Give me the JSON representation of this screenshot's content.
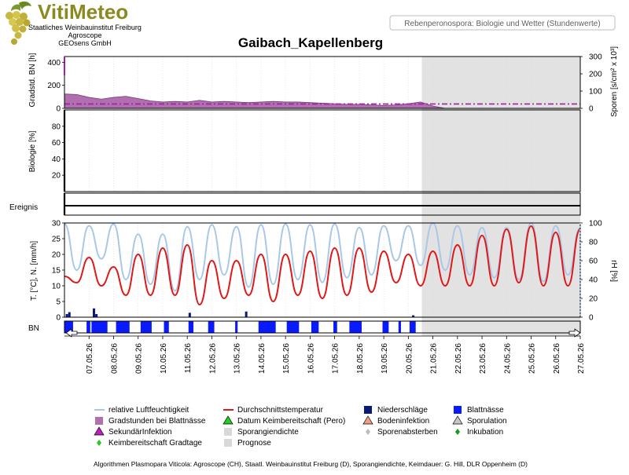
{
  "header": {
    "brand": "VitiMeteo",
    "org_lines": [
      "Staatliches Weinbauinstitut Freiburg",
      "Agroscope",
      "GEOsens GmbH"
    ],
    "report_title": "Rebenperonospora: Biologie und Wetter (Stundenwerte)",
    "station": "Gaibach_Kapellenberg"
  },
  "colors": {
    "brand": "#8a8a20",
    "humidity": "#a9c8e8",
    "temperature": "#e01818",
    "precip": "#0a1a7a",
    "leaf_wet": "#0a1aff",
    "degree_hours": "#b070b0",
    "forecast_bg": "#e2e2e2",
    "axis": "#000000"
  },
  "chart_data": [
    {
      "type": "area",
      "panel": "Gradstd. BN / Sporen",
      "ylabel": "Gradstd. BN [h]",
      "ylim": [
        0,
        450
      ],
      "yticks": [
        "0",
        "200",
        "400"
      ],
      "ylabel_right": "Sporen [s/cm² x 10³]",
      "ylim_right": [
        0,
        300
      ],
      "yticks_right": [
        "0",
        "100",
        "200",
        "300"
      ],
      "series": [
        {
          "name": "Gradstunden bei Blattnässe",
          "x": [
            6.0,
            6.5,
            7.0,
            7.5,
            8.0,
            8.5,
            9.0,
            9.5,
            10.0,
            10.5,
            11.0,
            11.5,
            12.0,
            12.5,
            13.0,
            13.5,
            14.0,
            14.5,
            15.0,
            15.5,
            16.0,
            16.5,
            17.0,
            17.5,
            18.0,
            18.5,
            19.0,
            19.5,
            20.0,
            20.5,
            21.0,
            21.5
          ],
          "values": [
            125,
            120,
            95,
            80,
            95,
            105,
            85,
            65,
            55,
            60,
            55,
            70,
            55,
            60,
            55,
            50,
            55,
            60,
            55,
            55,
            50,
            45,
            40,
            35,
            35,
            30,
            25,
            30,
            40,
            55,
            20,
            0
          ]
        }
      ],
      "dashed_line": 38
    },
    {
      "type": "line",
      "panel": "Biologie",
      "ylabel": "Biologie [%]",
      "ylim": [
        0,
        100
      ],
      "yticks": [
        "20",
        "40",
        "60",
        "80"
      ]
    },
    {
      "type": "line",
      "panel": "Ereignis",
      "ylabel": "Ereignis"
    },
    {
      "type": "line",
      "panel": "Wetter",
      "xlabel": "",
      "ylabel": "T. [°C], N. [mm/h]",
      "ylim": [
        0,
        30
      ],
      "yticks": [
        "0",
        "5",
        "10",
        "15",
        "20",
        "25",
        "30"
      ],
      "ylabel_right": "rH [%]",
      "ylim_right": [
        0,
        100
      ],
      "yticks_right": [
        "0",
        "20",
        "40",
        "60",
        "80",
        "100"
      ],
      "categories": [
        "07.05.26",
        "08.05.26",
        "09.05.26",
        "10.05.26",
        "11.05.26",
        "12.05.26",
        "13.05.26",
        "14.05.26",
        "15.05.26",
        "16.05.26",
        "17.05.26",
        "18.05.26",
        "19.05.26",
        "20.05.26",
        "21.05.26",
        "22.05.26",
        "23.05.26",
        "24.05.26",
        "25.05.26",
        "26.05.26",
        "27.05.26"
      ],
      "series": [
        {
          "name": "Durchschnittstemperatur",
          "daily_min": [
            11,
            10,
            7,
            7,
            7,
            4,
            6,
            7,
            5,
            7,
            6,
            7,
            8,
            11,
            10,
            10,
            10,
            10,
            11,
            10,
            10
          ],
          "daily_max": [
            19,
            16,
            20,
            22,
            23,
            18,
            18,
            20,
            20,
            21,
            22,
            22,
            21,
            20,
            21,
            23,
            26,
            28,
            29,
            27,
            28
          ],
          "x": [
            6.0,
            6.5,
            7.0,
            7.5,
            8.0,
            8.5,
            9.0,
            9.5,
            10.0,
            10.5,
            11.0,
            11.5,
            12.0,
            12.5,
            13.0,
            13.5,
            14.0,
            14.5,
            15.0,
            15.5,
            16.0,
            16.5,
            17.0,
            17.5,
            18.0,
            18.5,
            19.0,
            19.5,
            20.0,
            20.5,
            21.0,
            21.5,
            22.0,
            22.5,
            23.0,
            23.5,
            24.0,
            24.5,
            25.0,
            25.5,
            26.0,
            26.5,
            27.0
          ],
          "values": [
            13,
            11,
            19,
            10,
            16,
            7,
            20,
            7,
            22,
            7,
            23,
            4,
            18,
            6,
            18,
            7,
            20,
            5,
            20,
            7,
            21,
            6,
            22,
            7,
            22,
            8,
            21,
            11,
            20,
            10,
            21,
            10,
            23,
            10,
            26,
            10,
            28,
            11,
            29,
            10,
            27,
            10,
            28
          ]
        },
        {
          "name": "relative Luftfeuchtigkeit",
          "x": [
            6.0,
            6.5,
            7.0,
            7.5,
            8.0,
            8.5,
            9.0,
            9.5,
            10.0,
            10.5,
            11.0,
            11.5,
            12.0,
            12.5,
            13.0,
            13.5,
            14.0,
            14.5,
            15.0,
            15.5,
            16.0,
            16.5,
            17.0,
            17.5,
            18.0,
            18.5,
            19.0,
            19.5,
            20.0,
            20.5,
            21.0,
            21.5,
            22.0,
            22.5,
            23.0,
            23.5,
            24.0,
            24.5,
            25.0,
            25.5,
            26.0,
            26.5,
            27.0
          ],
          "values": [
            99,
            50,
            97,
            62,
            99,
            40,
            88,
            35,
            88,
            28,
            96,
            40,
            98,
            45,
            96,
            32,
            98,
            35,
            99,
            40,
            98,
            37,
            99,
            42,
            95,
            45,
            97,
            60,
            97,
            55,
            100,
            50,
            97,
            45,
            95,
            42,
            95,
            40,
            100,
            38,
            97,
            45,
            95
          ]
        },
        {
          "name": "Niederschläge",
          "x": [
            6.1,
            6.2,
            7.2,
            7.3,
            11.1,
            13.4,
            20.2
          ],
          "values": [
            1.0,
            1.6,
            2.8,
            1.0,
            1.4,
            1.8,
            0.6
          ]
        }
      ]
    },
    {
      "type": "bar",
      "panel": "BN",
      "ylabel": "BN",
      "series": [
        {
          "name": "Blattnässe",
          "intervals": [
            [
              6.0,
              6.35
            ],
            [
              6.9,
              7.05
            ],
            [
              7.1,
              7.75
            ],
            [
              8.1,
              8.65
            ],
            [
              9.1,
              9.55
            ],
            [
              10.05,
              10.25
            ],
            [
              11.05,
              11.25
            ],
            [
              11.85,
              12.1
            ],
            [
              12.95,
              13.05
            ],
            [
              13.9,
              14.6
            ],
            [
              15.05,
              15.55
            ],
            [
              16.05,
              16.35
            ],
            [
              16.95,
              17.1
            ],
            [
              17.6,
              18.1
            ],
            [
              18.95,
              19.2
            ],
            [
              19.6,
              19.7
            ],
            [
              20.05,
              20.3
            ]
          ]
        }
      ]
    }
  ],
  "legend": {
    "items": [
      {
        "label": "relative Luftfeuchtigkeit",
        "symbol": "line",
        "color": "#a9c8e8"
      },
      {
        "label": "Durchschnittstemperatur",
        "symbol": "line",
        "color": "#e01818"
      },
      {
        "label": "Niederschläge",
        "symbol": "square",
        "color": "#0a1a7a"
      },
      {
        "label": "Blattnässe",
        "symbol": "square",
        "color": "#0a1aff"
      },
      {
        "label": "Gradstunden bei Blattnässe",
        "symbol": "square",
        "color": "#b070b0"
      },
      {
        "label": "Datum Keimbereitschaft (Pero)",
        "symbol": "triangle",
        "color": "#22cc22"
      },
      {
        "label": "Bodeninfektion",
        "symbol": "triangle",
        "color": "#f0a080"
      },
      {
        "label": "Sporulation",
        "symbol": "triangle",
        "color": "#c8c8c8"
      },
      {
        "label": "SekundärInfektion",
        "symbol": "triangle",
        "color": "#c020c0"
      },
      {
        "label": "Sporangiendichte",
        "symbol": "square",
        "color": "#d8d8d8"
      },
      {
        "label": "Sporenabsterben",
        "symbol": "diamond",
        "color": "#bbbbbb"
      },
      {
        "label": "Inkubation",
        "symbol": "diamond",
        "color": "#1a9a1a"
      },
      {
        "label": "Keimbereitschaft Gradtage",
        "symbol": "diamond",
        "color": "#22cc22"
      },
      {
        "label": "Prognose",
        "symbol": "square",
        "color": "#d8d8d8"
      }
    ]
  },
  "footer": {
    "text": "Algorithmen Plasmopara Viticola: Agroscope (CH), Staatl. Weinbauinstitut Freiburg (D), Sporangiendichte, Keimdauer: G. Hill, DLR Oppenheim (D)"
  }
}
